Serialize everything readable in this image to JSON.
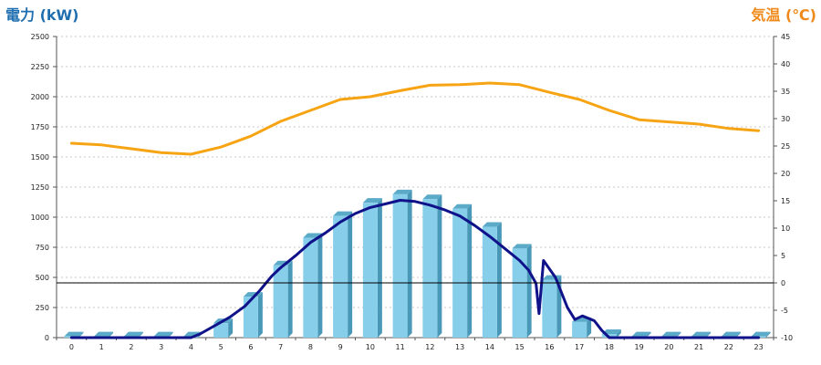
{
  "chart_data": {
    "type": "bar",
    "left_axis_title": "電力 (kW)",
    "right_axis_title": "気温 (℃)",
    "left_axis": {
      "min": 0,
      "max": 2500,
      "ticks": [
        0,
        250,
        500,
        750,
        1000,
        1250,
        1500,
        1750,
        2000,
        2250,
        2500
      ]
    },
    "right_axis": {
      "min": -10,
      "max": 45,
      "ticks": [
        -10,
        -5,
        0,
        5,
        10,
        15,
        20,
        25,
        30,
        35,
        40,
        45
      ]
    },
    "grid": true,
    "categories": [
      "0",
      "1",
      "2",
      "3",
      "4",
      "5",
      "6",
      "7",
      "8",
      "9",
      "10",
      "11",
      "12",
      "13",
      "14",
      "15",
      "16",
      "17",
      "18",
      "19",
      "20",
      "21",
      "22",
      "23"
    ],
    "series": [
      {
        "kind": "bar",
        "axis": "left",
        "color": "#87ceeb",
        "values": [
          10,
          10,
          10,
          10,
          10,
          120,
          340,
          600,
          830,
          1010,
          1120,
          1190,
          1150,
          1070,
          920,
          740,
          480,
          130,
          30,
          10,
          10,
          10,
          10,
          10
        ]
      },
      {
        "kind": "line",
        "axis": "left",
        "color": "#10128a",
        "x": [
          0,
          1,
          2,
          3,
          4,
          4.3,
          4.8,
          5.3,
          5.8,
          6.3,
          6.7,
          7,
          7.5,
          8,
          8.5,
          9,
          9.5,
          10,
          10.5,
          11,
          11.5,
          12,
          12.5,
          13,
          13.5,
          14,
          14.5,
          15,
          15.3,
          15.55,
          15.65,
          15.8,
          16.2,
          16.6,
          16.85,
          17.1,
          17.5,
          17.75,
          18,
          18.5,
          23
        ],
        "values": [
          0,
          0,
          0,
          0,
          0,
          30,
          100,
          170,
          260,
          390,
          510,
          580,
          680,
          790,
          870,
          960,
          1030,
          1080,
          1110,
          1140,
          1130,
          1100,
          1060,
          1010,
          930,
          840,
          740,
          640,
          560,
          450,
          200,
          640,
          500,
          250,
          150,
          180,
          140,
          60,
          0,
          0,
          0
        ]
      },
      {
        "kind": "line",
        "axis": "right",
        "color": "#f7a414",
        "x": [
          0,
          1,
          2,
          3,
          4,
          5,
          6,
          7,
          8,
          9,
          10,
          11,
          12,
          13,
          14,
          15,
          16,
          17,
          18,
          19,
          20,
          21,
          22,
          23
        ],
        "values": [
          25.5,
          25.2,
          24.5,
          23.8,
          23.5,
          24.8,
          26.8,
          29.5,
          31.5,
          33.5,
          34.0,
          35.1,
          36.1,
          36.2,
          36.5,
          36.2,
          34.8,
          33.5,
          31.5,
          29.8,
          29.4,
          29.0,
          28.2,
          27.8
        ]
      }
    ],
    "reference_lines": [
      {
        "axis": "right",
        "value": 0,
        "color": "#000000"
      }
    ]
  }
}
